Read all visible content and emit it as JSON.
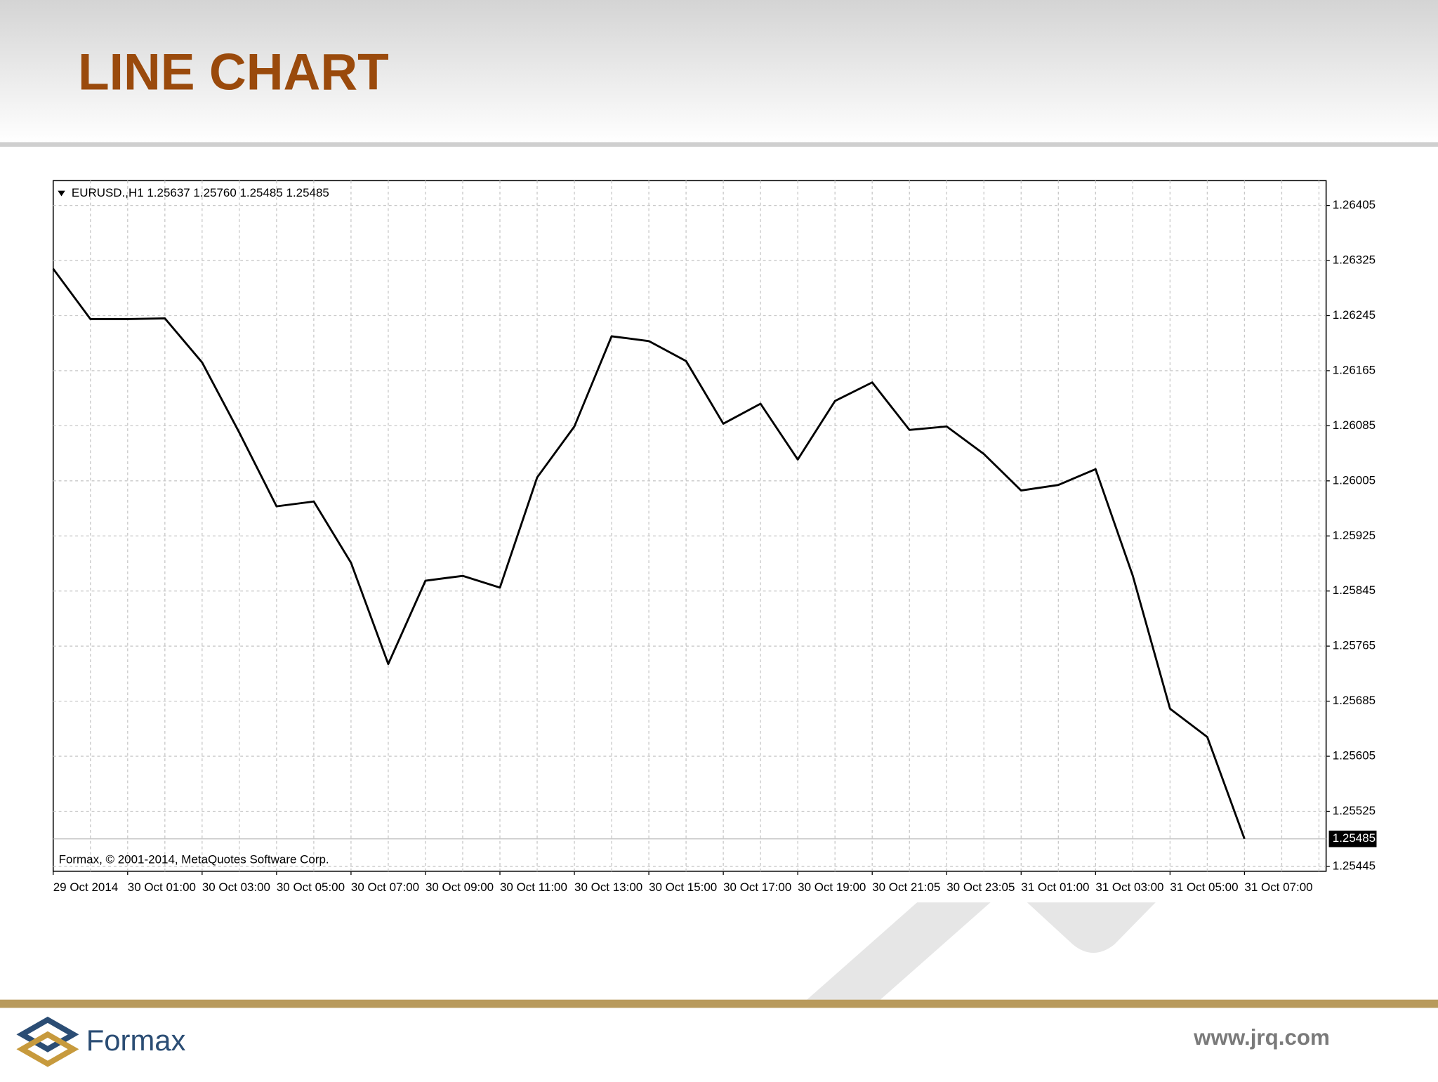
{
  "chart_data": {
    "type": "line",
    "title": "LINE CHART",
    "subtitle": "EURUSD.,H1  1.25637 1.25760 1.25485 1.25485",
    "annotation": "Formax, © 2001-2014, MetaQuotes Software Corp.",
    "categories": [
      "29 Oct 2014",
      null,
      "30 Oct 01:00",
      null,
      "30 Oct 03:00",
      null,
      "30 Oct 05:00",
      null,
      "30 Oct 07:00",
      null,
      "30 Oct 09:00",
      null,
      "30 Oct 11:00",
      null,
      "30 Oct 13:00",
      null,
      "30 Oct 15:00",
      null,
      "30 Oct 17:00",
      null,
      "30 Oct 19:00",
      null,
      "30 Oct 21:05",
      null,
      "30 Oct 23:05",
      null,
      "31 Oct 01:00",
      null,
      "31 Oct 03:00",
      null,
      "31 Oct 05:00",
      null,
      "31 Oct 07:00"
    ],
    "series": [
      {
        "name": "EURUSD.,H1",
        "color": "#000000",
        "values": [
          1.26313,
          1.2624,
          1.2624,
          1.26241,
          1.26177,
          1.26075,
          1.25968,
          1.25975,
          1.25886,
          1.25739,
          1.2586,
          1.25867,
          1.2585,
          1.2601,
          1.26084,
          1.26215,
          1.26208,
          1.26179,
          1.26088,
          1.26117,
          1.26036,
          1.26121,
          1.26148,
          1.26079,
          1.26084,
          1.26044,
          1.25991,
          1.25999,
          1.26022,
          1.25867,
          1.25674,
          1.25633,
          1.25485
        ]
      }
    ],
    "current_price": 1.25485,
    "ylim": [
      1.25438,
      1.26441
    ],
    "yticks": [
      1.26405,
      1.26325,
      1.26245,
      1.26165,
      1.26085,
      1.26005,
      1.25925,
      1.25845,
      1.25765,
      1.25685,
      1.25605,
      1.25525,
      1.25445
    ],
    "grid": true
  },
  "footer": {
    "brand": "Formax",
    "url": "www.jrq.com"
  }
}
